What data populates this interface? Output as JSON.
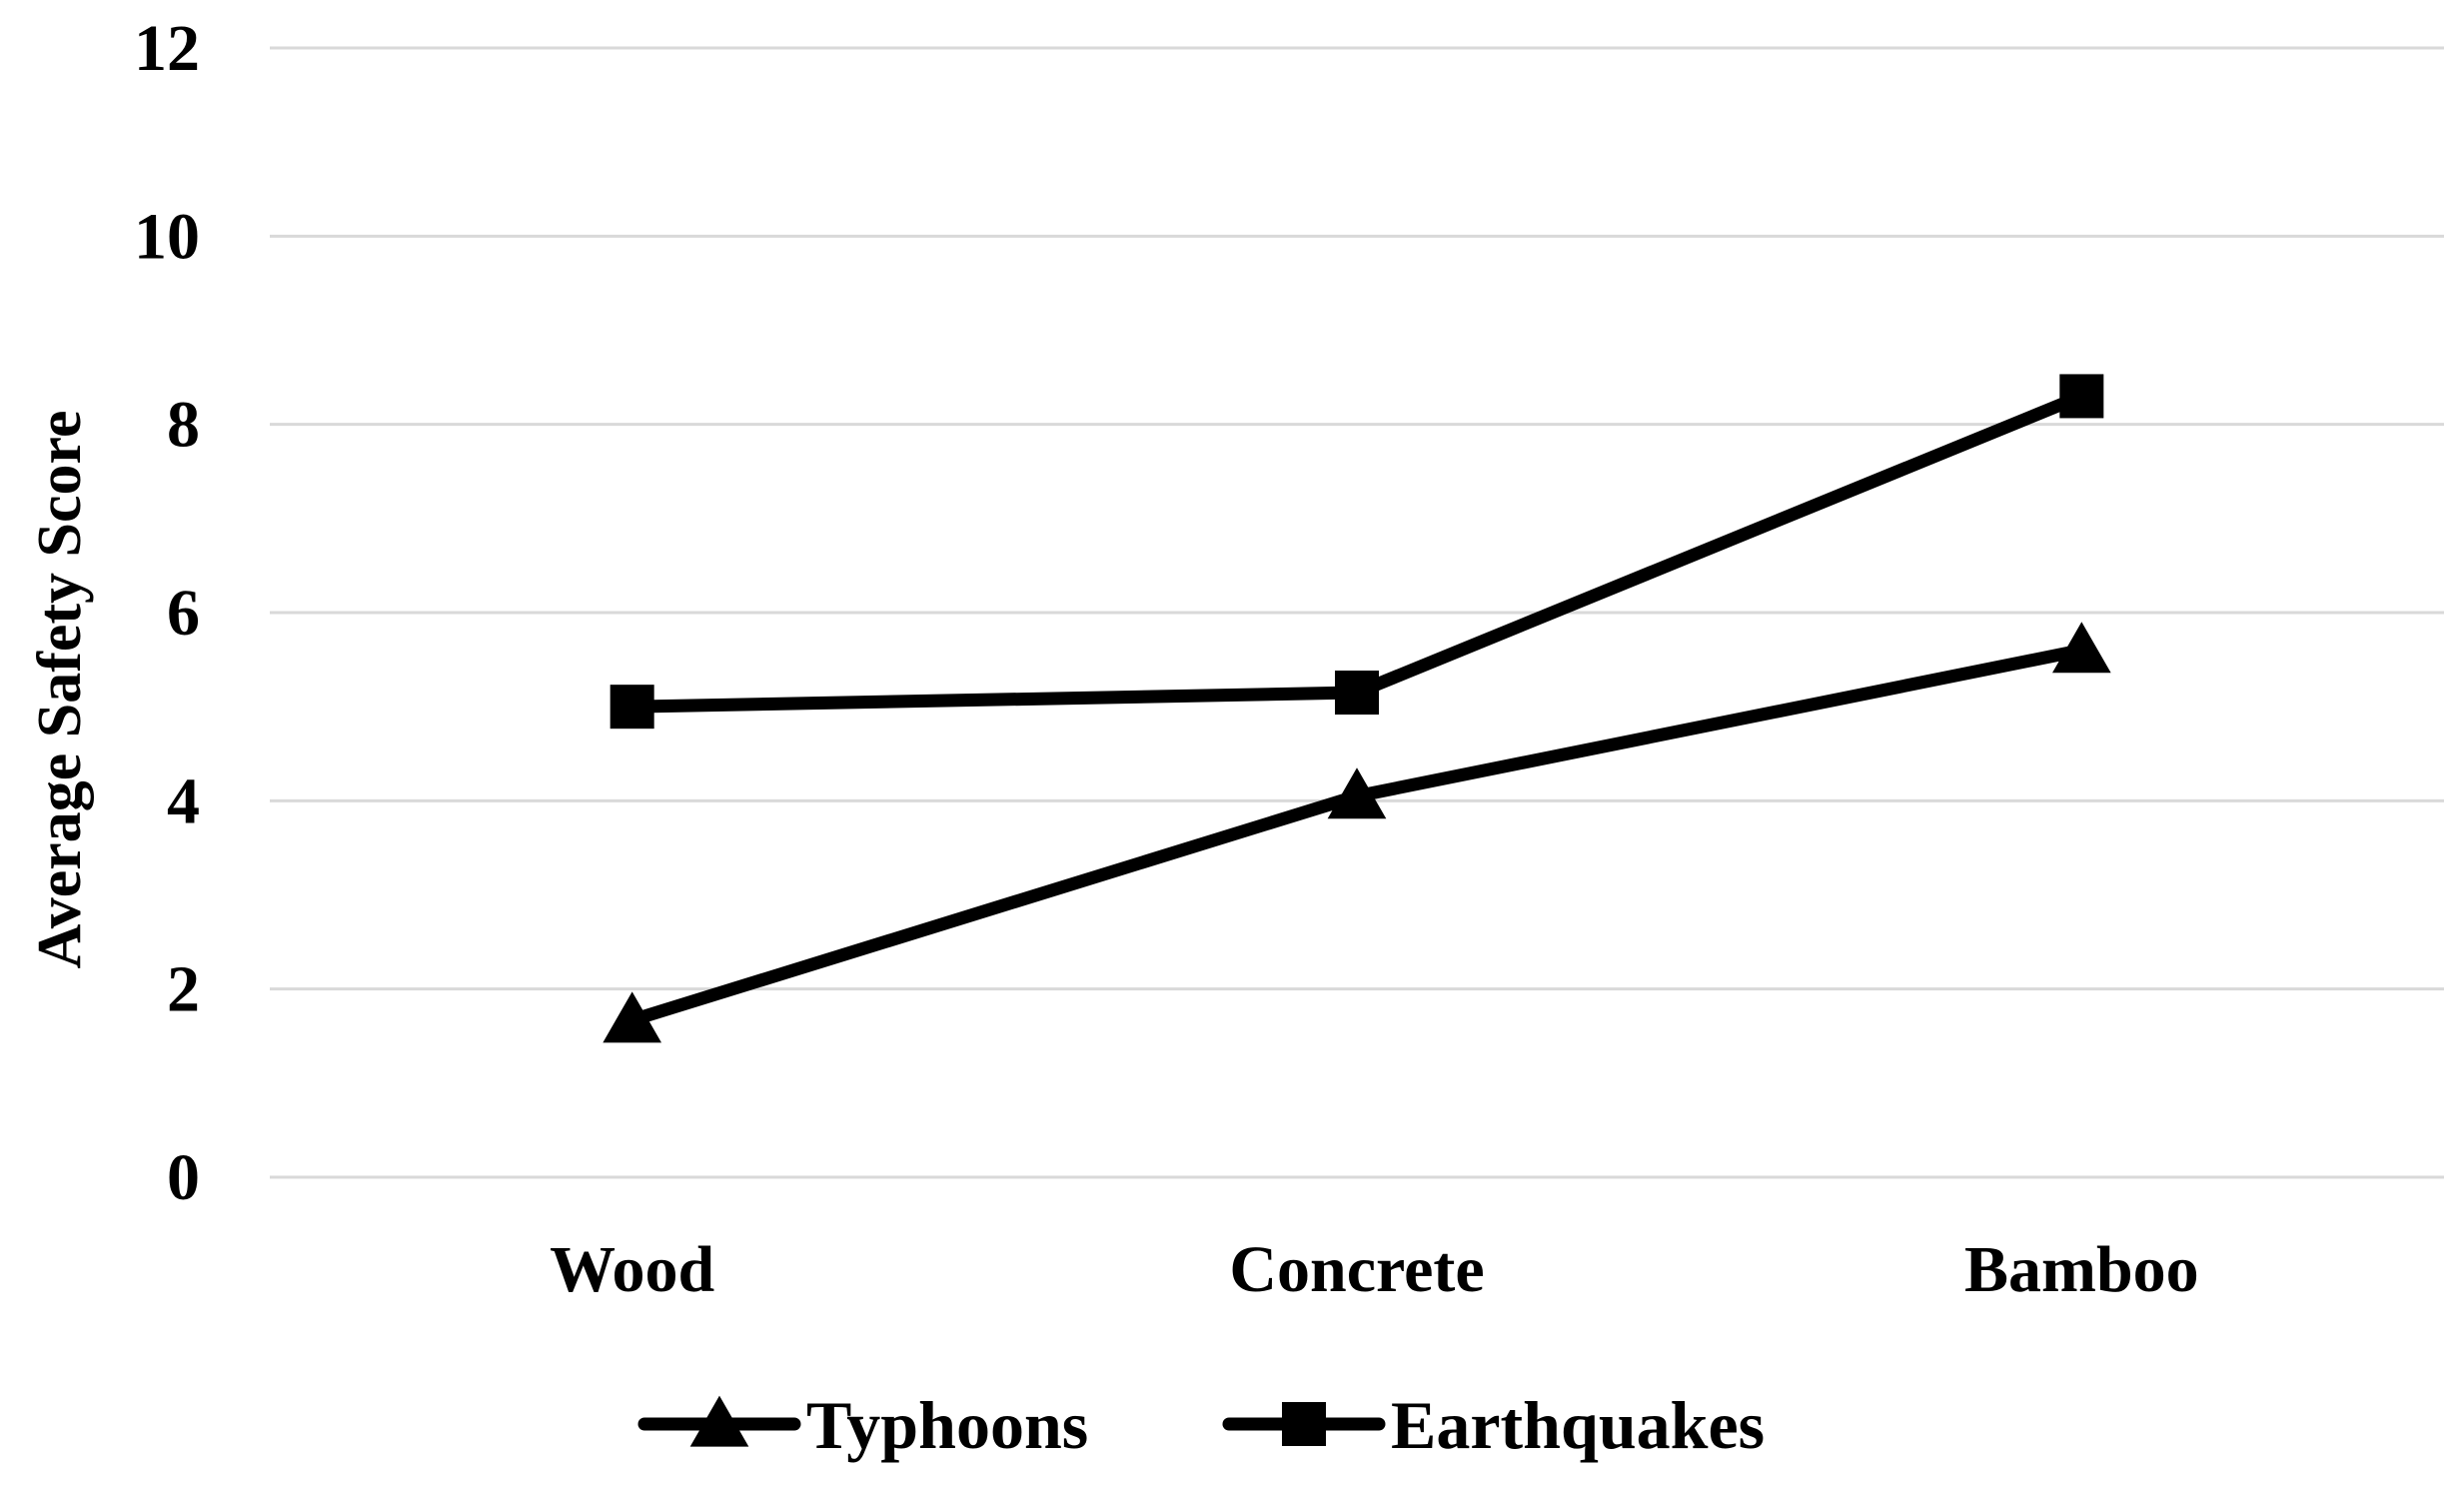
{
  "chart_data": {
    "type": "line",
    "title": "",
    "xlabel": "",
    "ylabel": "Average Safety Score",
    "categories": [
      "Wood",
      "Concrete",
      "Bamboo"
    ],
    "ylim": [
      0,
      12
    ],
    "yticks": [
      0,
      2,
      4,
      6,
      8,
      10,
      12
    ],
    "ytick_labels": [
      "0",
      "2",
      "4",
      "6",
      "8",
      "10",
      "12"
    ],
    "grid": "horizontal",
    "legend_position": "bottom",
    "series": [
      {
        "name": "Typhoons",
        "values": [
          1.67,
          4.05,
          5.6
        ],
        "marker": "triangle",
        "color": "#000000"
      },
      {
        "name": "Earthquakes",
        "values": [
          5.0,
          5.15,
          8.3
        ],
        "marker": "square",
        "color": "#000000"
      }
    ]
  }
}
